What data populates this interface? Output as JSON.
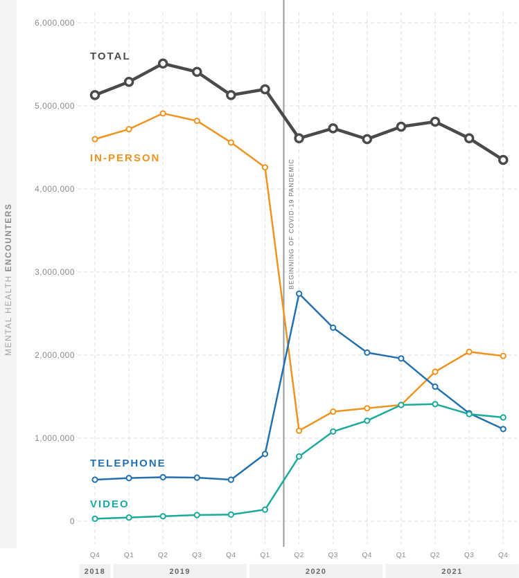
{
  "chart_data": {
    "type": "line",
    "ylabel_regular": "MENTAL HEALTH ",
    "ylabel_bold": "ENCOUNTERS",
    "ylim": [
      0,
      6000000
    ],
    "y_ticks": [
      {
        "value": 0,
        "label": "0"
      },
      {
        "value": 1000000,
        "label": "1,000,000"
      },
      {
        "value": 2000000,
        "label": "2,000,000"
      },
      {
        "value": 3000000,
        "label": "3,000,000"
      },
      {
        "value": 4000000,
        "label": "4,000,000"
      },
      {
        "value": 5000000,
        "label": "5,000,000"
      },
      {
        "value": 6000000,
        "label": "6,000,000"
      }
    ],
    "categories": [
      "Q4",
      "Q1",
      "Q2",
      "Q3",
      "Q4",
      "Q1",
      "Q2",
      "Q3",
      "Q4",
      "Q1",
      "Q2",
      "Q3",
      "Q4"
    ],
    "years": [
      {
        "label": "2018",
        "from": 0,
        "to": 0
      },
      {
        "label": "2019",
        "from": 1,
        "to": 4
      },
      {
        "label": "2020",
        "from": 5,
        "to": 8
      },
      {
        "label": "2021",
        "from": 9,
        "to": 12
      }
    ],
    "annotation": {
      "label": "BEGINNING OF COVID-19 PANDEMIC",
      "position": 5.55
    },
    "grid": true,
    "series": [
      {
        "name": "TOTAL",
        "color": "#4a4a4a",
        "values": [
          5130000,
          5290000,
          5510000,
          5410000,
          5130000,
          5200000,
          4610000,
          4730000,
          4600000,
          4750000,
          4810000,
          4610000,
          4350000
        ]
      },
      {
        "name": "IN-PERSON",
        "color": "#f0921e",
        "values": [
          4600000,
          4720000,
          4910000,
          4820000,
          4560000,
          4260000,
          1090000,
          1320000,
          1360000,
          1400000,
          1800000,
          2040000,
          1990000
        ]
      },
      {
        "name": "TELEPHONE",
        "color": "#2270b0",
        "values": [
          500000,
          520000,
          530000,
          525000,
          500000,
          810000,
          2740000,
          2330000,
          2030000,
          1960000,
          1620000,
          1300000,
          1110000
        ]
      },
      {
        "name": "VIDEO",
        "color": "#1aaa9c",
        "values": [
          30000,
          45000,
          60000,
          75000,
          80000,
          140000,
          780000,
          1080000,
          1210000,
          1400000,
          1410000,
          1290000,
          1250000
        ]
      }
    ]
  }
}
